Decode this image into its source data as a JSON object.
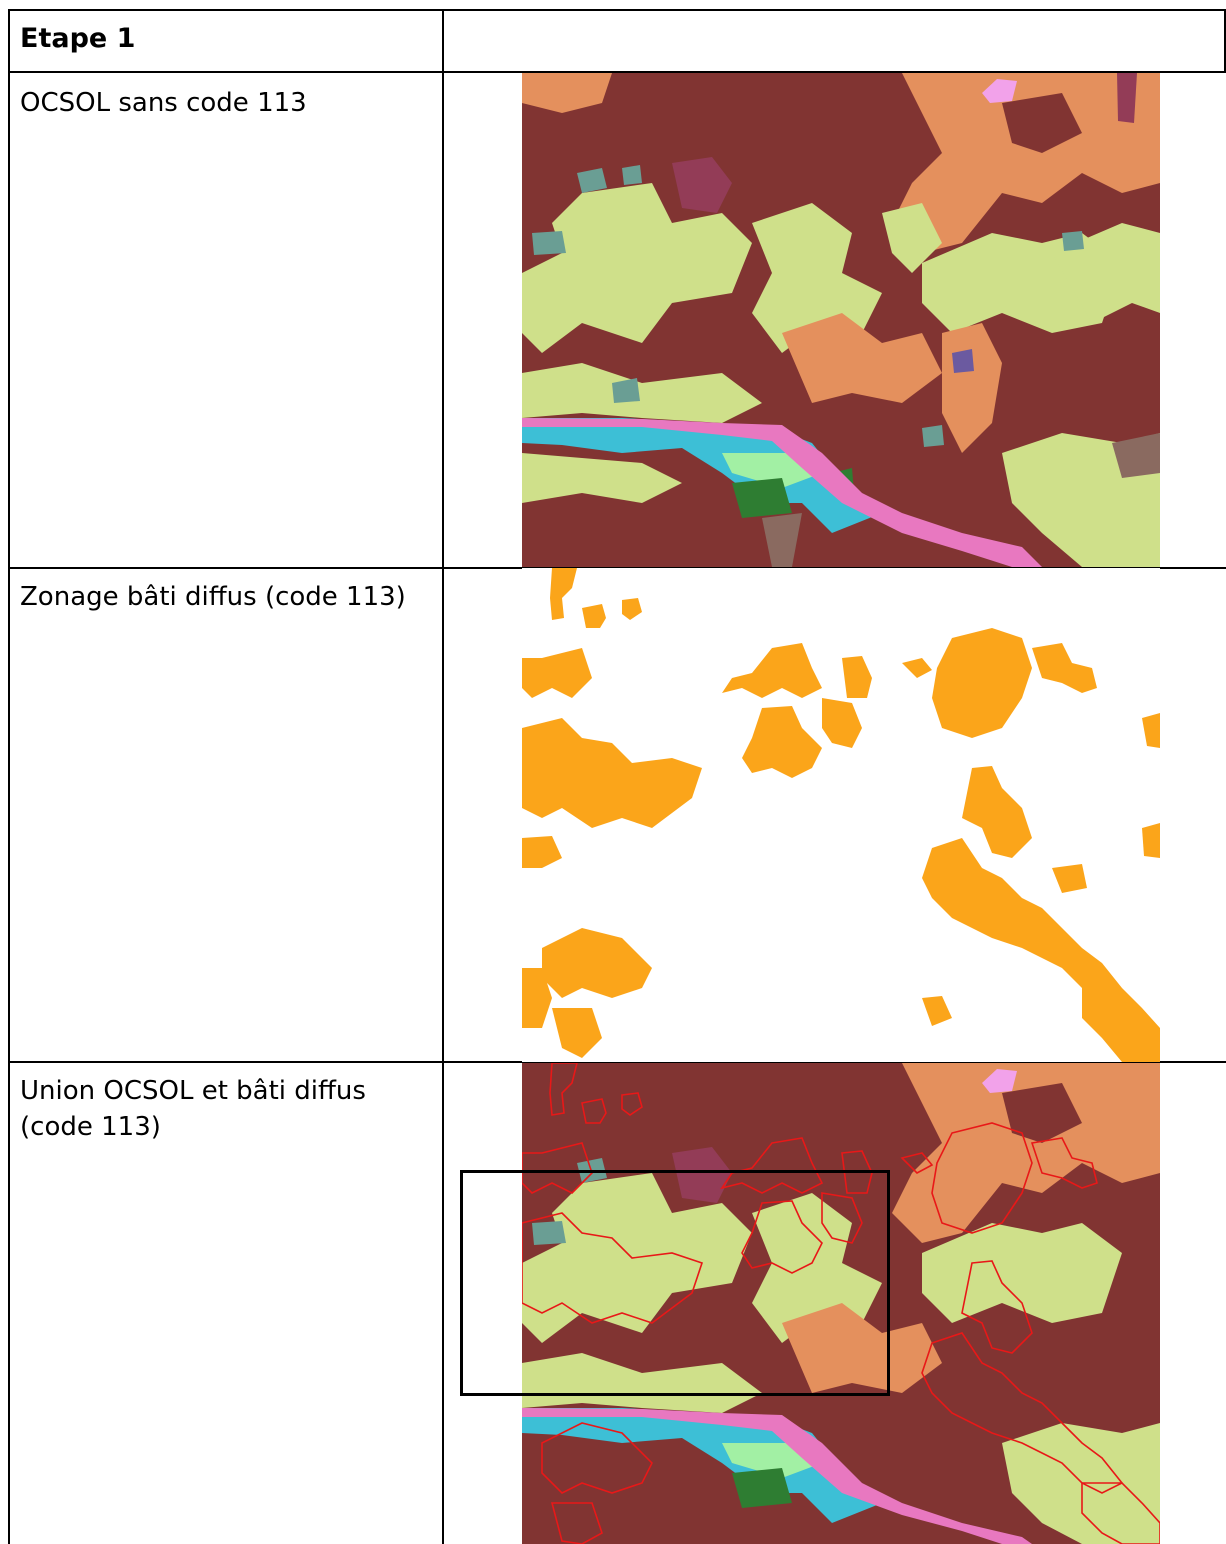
{
  "table": {
    "header": {
      "label": "Etape 1",
      "right": ""
    },
    "rows": [
      {
        "label": "OCSOL sans code 113",
        "map": "ocsol-map"
      },
      {
        "label": "Zonage bâti diffus (code 113)",
        "map": "bati-diffus-map"
      },
      {
        "label_line1": "Union OCSOL et bâti diffus",
        "label_line2": "(code 113)",
        "map": "union-map"
      }
    ]
  },
  "colors": {
    "forest": "#813432",
    "agri_light": "#cfe08a",
    "agri_orange": "#e4905d",
    "water": "#3dbfd6",
    "road": "#e878c0",
    "teal": "#6a9e94",
    "bati_diffus": "#fba51a",
    "union_outline": "#e81818"
  }
}
